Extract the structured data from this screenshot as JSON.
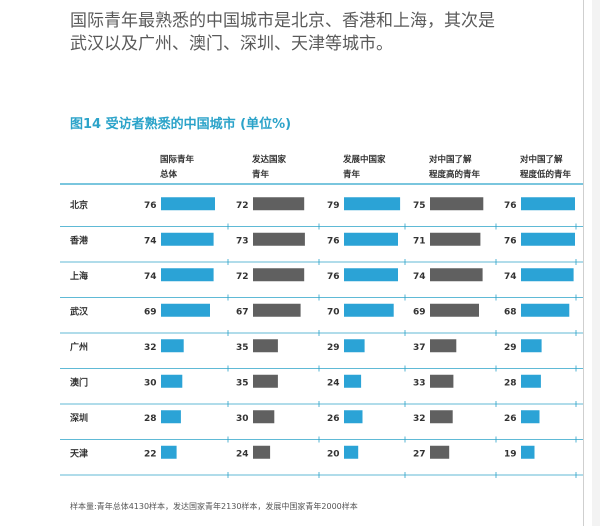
{
  "intro": {
    "line1": "国际青年最熟悉的中国城市是北京、香港和上海，其次是",
    "line2": "武汉以及广州、澳门、深圳、天津等城市。"
  },
  "figure_title": "图14  受访者熟悉的中国城市 (单位%)",
  "note": "样本量:青年总体4130样本，发达国家青年2130样本，发展中国家青年2000样本",
  "colors": {
    "blue": "#2ba3d6",
    "gray": "#606060",
    "title": "#2ba3c9",
    "rule": "#2ba3c9"
  },
  "chart_data": {
    "type": "bar",
    "title": "图14  受访者熟悉的中国城市 (单位%)",
    "categories": [
      "北京",
      "香港",
      "上海",
      "武汉",
      "广州",
      "澳门",
      "深圳",
      "天津"
    ],
    "series": [
      {
        "name": "国际青年总体",
        "label_lines": [
          "国际青年",
          "总体"
        ],
        "color": "#2ba3d6",
        "values": [
          76,
          74,
          74,
          69,
          32,
          30,
          28,
          22
        ]
      },
      {
        "name": "发达国家青年",
        "label_lines": [
          "发达国家",
          "青年"
        ],
        "color": "#606060",
        "values": [
          72,
          73,
          72,
          67,
          35,
          35,
          30,
          24
        ]
      },
      {
        "name": "发展中国家青年",
        "label_lines": [
          "发展中国家",
          "青年"
        ],
        "color": "#2ba3d6",
        "values": [
          79,
          76,
          76,
          70,
          29,
          24,
          26,
          20
        ]
      },
      {
        "name": "对中国了解程度高的青年",
        "label_lines": [
          "对中国了解",
          "程度高的青年"
        ],
        "color": "#606060",
        "values": [
          75,
          71,
          74,
          69,
          37,
          33,
          32,
          27
        ]
      },
      {
        "name": "对中国了解程度低的青年",
        "label_lines": [
          "对中国了解",
          "程度低的青年"
        ],
        "color": "#2ba3d6",
        "values": [
          76,
          76,
          74,
          68,
          29,
          28,
          26,
          19
        ]
      }
    ]
  }
}
